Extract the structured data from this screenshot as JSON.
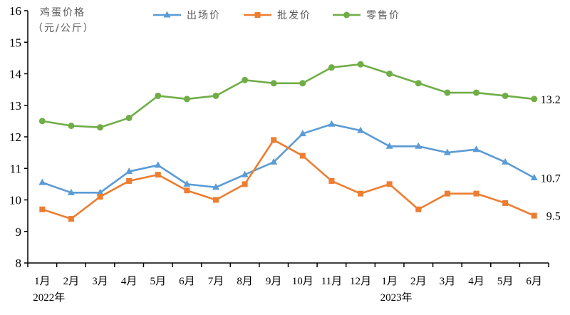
{
  "chart_data": {
    "type": "line",
    "title": "",
    "ylabel": "鸡蛋价格（元/公斤）",
    "ylabel_lines": [
      "鸡蛋价格",
      "（元/公斤）"
    ],
    "xlabel": "",
    "ylim": [
      8,
      16
    ],
    "yticks": [
      8,
      9,
      10,
      11,
      12,
      13,
      14,
      15,
      16
    ],
    "grid": false,
    "legend_position": "top",
    "categories": [
      "1月",
      "2月",
      "3月",
      "4月",
      "5月",
      "6月",
      "7月",
      "8月",
      "9月",
      "10月",
      "11月",
      "12月",
      "1月",
      "2月",
      "3月",
      "4月",
      "5月",
      "6月"
    ],
    "year_labels": [
      {
        "text": "2022年",
        "index": 0
      },
      {
        "text": "2023年",
        "index": 12
      }
    ],
    "series": [
      {
        "name": "出场价",
        "color": "#5B9BD5",
        "marker": "triangle",
        "values": [
          10.55,
          10.23,
          10.23,
          10.9,
          11.1,
          10.5,
          10.4,
          10.8,
          11.2,
          12.1,
          12.4,
          12.2,
          11.7,
          11.7,
          11.5,
          11.6,
          11.2,
          10.7
        ],
        "end_label": "10.7"
      },
      {
        "name": "批发价",
        "color": "#ED7D31",
        "marker": "square",
        "values": [
          9.7,
          9.4,
          10.1,
          10.6,
          10.8,
          10.3,
          10.0,
          10.5,
          11.9,
          11.4,
          10.6,
          10.2,
          10.5,
          9.7,
          10.2,
          10.2,
          9.9,
          9.5
        ],
        "end_label": "9.5"
      },
      {
        "name": "零售价",
        "color": "#70AD47",
        "marker": "circle",
        "values": [
          12.5,
          12.35,
          12.3,
          12.6,
          13.3,
          13.2,
          13.3,
          13.8,
          13.7,
          13.7,
          14.2,
          14.3,
          14.0,
          13.7,
          13.4,
          13.4,
          13.3,
          13.2
        ],
        "end_label": "13.2"
      }
    ]
  }
}
